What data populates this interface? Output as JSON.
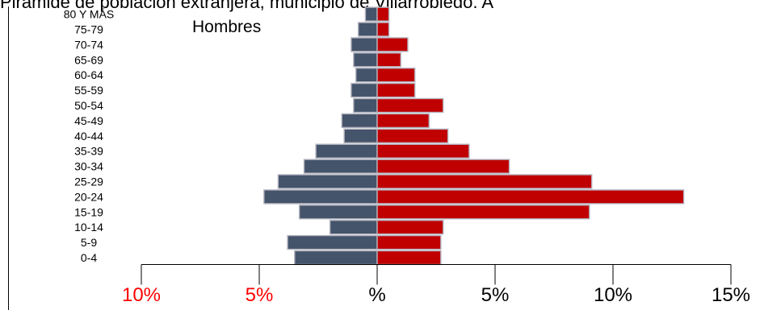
{
  "title_fragment": "Pirámide de población extranjera, municipio de Villarrobledo. A",
  "chart_data": {
    "type": "bar",
    "orientation": "horizontal",
    "categories": [
      "0-4",
      "5-9",
      "10-14",
      "15-19",
      "20-24",
      "25-29",
      "30-34",
      "35-39",
      "40-44",
      "45-49",
      "50-54",
      "55-59",
      "60-64",
      "65-69",
      "70-74",
      "75-79",
      "80 Y MÁS"
    ],
    "series": [
      {
        "name": "Hombres",
        "color": "#44546a",
        "values": [
          -3.5,
          -3.8,
          -2.0,
          -3.3,
          -4.8,
          -4.2,
          -3.1,
          -2.6,
          -1.4,
          -1.5,
          -1.0,
          -1.1,
          -0.9,
          -1.0,
          -1.1,
          -0.8,
          -0.5
        ]
      },
      {
        "name": "",
        "color": "#c00000",
        "values": [
          2.7,
          2.7,
          2.8,
          9.0,
          13.0,
          9.1,
          5.6,
          3.9,
          3.0,
          2.2,
          2.8,
          1.6,
          1.6,
          1.0,
          1.3,
          0.5,
          0.5
        ]
      }
    ],
    "legend_text": "Hombres",
    "x_ticks": [
      {
        "value": -10,
        "label": "10%",
        "color": "#ff0000"
      },
      {
        "value": -5,
        "label": "5%",
        "color": "#ff0000"
      },
      {
        "value": 0,
        "label": "%",
        "color": "#000000"
      },
      {
        "value": 5,
        "label": "5%",
        "color": "#000000"
      },
      {
        "value": 10,
        "label": "10%",
        "color": "#000000"
      },
      {
        "value": 15,
        "label": "15%",
        "color": "#000000"
      }
    ],
    "xlim": [
      -10,
      15
    ],
    "grid": false
  }
}
